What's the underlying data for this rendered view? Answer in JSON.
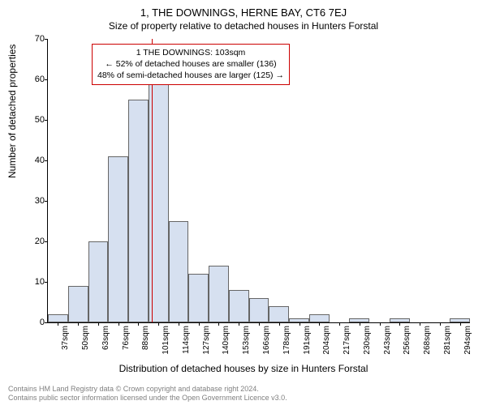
{
  "title": "1, THE DOWNINGS, HERNE BAY, CT6 7EJ",
  "subtitle": "Size of property relative to detached houses in Hunters Forstal",
  "ylabel": "Number of detached properties",
  "xlabel": "Distribution of detached houses by size in Hunters Forstal",
  "chart": {
    "type": "histogram",
    "ylim": [
      0,
      70
    ],
    "ytick_step": 10,
    "yticks": [
      0,
      10,
      20,
      30,
      40,
      50,
      60,
      70
    ],
    "bar_color": "#d6e0f0",
    "bar_border_color": "#666666",
    "background_color": "#ffffff",
    "categories": [
      "37sqm",
      "50sqm",
      "63sqm",
      "76sqm",
      "88sqm",
      "101sqm",
      "114sqm",
      "127sqm",
      "140sqm",
      "153sqm",
      "166sqm",
      "178sqm",
      "191sqm",
      "204sqm",
      "217sqm",
      "230sqm",
      "243sqm",
      "256sqm",
      "268sqm",
      "281sqm",
      "294sqm"
    ],
    "values": [
      2,
      9,
      20,
      41,
      55,
      60,
      25,
      12,
      14,
      8,
      6,
      4,
      1,
      2,
      0,
      1,
      0,
      1,
      0,
      0,
      1
    ],
    "marker_value_index": 5,
    "marker_color": "#cc0000",
    "annotation": {
      "lines": [
        "1 THE DOWNINGS: 103sqm",
        "← 52% of detached houses are smaller (136)",
        "48% of semi-detached houses are larger (125) →"
      ],
      "border_color": "#cc0000"
    }
  },
  "footer": {
    "line1": "Contains HM Land Registry data © Crown copyright and database right 2024.",
    "line2": "Contains public sector information licensed under the Open Government Licence v3.0."
  }
}
